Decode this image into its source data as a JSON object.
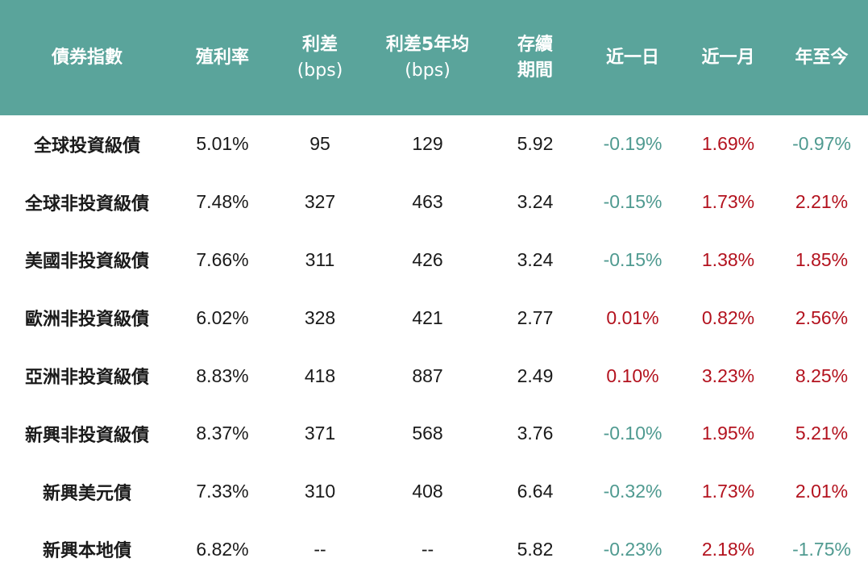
{
  "header": {
    "index": "債券指數",
    "yield": "殖利率",
    "spread_l1": "利差",
    "spread_l2": "(bps)",
    "spread5y_l1": "利差5年均",
    "spread5y_l2": "(bps)",
    "duration_l1": "存續",
    "duration_l2": "期間",
    "d1": "近一日",
    "m1": "近一月",
    "ytd": "年至今"
  },
  "colors": {
    "header_bg": "#5aa49b",
    "negative": "#4f9a90",
    "positive": "#b3121e"
  },
  "rows": [
    {
      "name": "全球投資級債",
      "yield": "5.01%",
      "spread": "95",
      "spread5y": "129",
      "duration": "5.92",
      "d1": "-0.19%",
      "m1": "1.69%",
      "ytd": "-0.97%"
    },
    {
      "name": "全球非投資級債",
      "yield": "7.48%",
      "spread": "327",
      "spread5y": "463",
      "duration": "3.24",
      "d1": "-0.15%",
      "m1": "1.73%",
      "ytd": "2.21%"
    },
    {
      "name": "美國非投資級債",
      "yield": "7.66%",
      "spread": "311",
      "spread5y": "426",
      "duration": "3.24",
      "d1": "-0.15%",
      "m1": "1.38%",
      "ytd": "1.85%"
    },
    {
      "name": "歐洲非投資級債",
      "yield": "6.02%",
      "spread": "328",
      "spread5y": "421",
      "duration": "2.77",
      "d1": "0.01%",
      "m1": "0.82%",
      "ytd": "2.56%"
    },
    {
      "name": "亞洲非投資級債",
      "yield": "8.83%",
      "spread": "418",
      "spread5y": "887",
      "duration": "2.49",
      "d1": "0.10%",
      "m1": "3.23%",
      "ytd": "8.25%"
    },
    {
      "name": "新興非投資級債",
      "yield": "8.37%",
      "spread": "371",
      "spread5y": "568",
      "duration": "3.76",
      "d1": "-0.10%",
      "m1": "1.95%",
      "ytd": "5.21%"
    },
    {
      "name": "新興美元債",
      "yield": "7.33%",
      "spread": "310",
      "spread5y": "408",
      "duration": "6.64",
      "d1": "-0.32%",
      "m1": "1.73%",
      "ytd": "2.01%"
    },
    {
      "name": "新興本地債",
      "yield": "6.82%",
      "spread": "--",
      "spread5y": "--",
      "duration": "5.82",
      "d1": "-0.23%",
      "m1": "2.18%",
      "ytd": "-1.75%"
    }
  ]
}
